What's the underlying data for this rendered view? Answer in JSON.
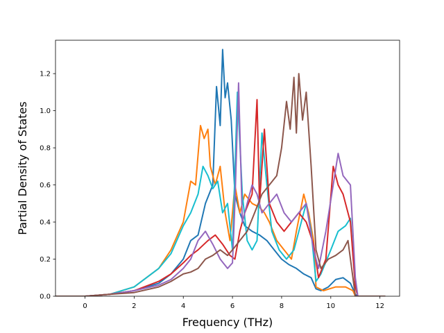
{
  "chart_data": {
    "type": "line",
    "title": "",
    "xlabel": "Frequency (THz)",
    "ylabel": "Partial Density of States",
    "xlim": [
      -1.2,
      12.8
    ],
    "ylim": [
      0.0,
      1.38
    ],
    "xticks": [
      0,
      2,
      4,
      6,
      8,
      10,
      12
    ],
    "yticks": [
      0.0,
      0.2,
      0.4,
      0.6,
      0.8,
      1.0,
      1.2
    ],
    "xtick_labels": [
      "0",
      "2",
      "4",
      "6",
      "8",
      "10",
      "12"
    ],
    "ytick_labels": [
      "0.0",
      "0.2",
      "0.4",
      "0.6",
      "0.8",
      "1.0",
      "1.2"
    ],
    "grid": false,
    "legend": "none",
    "series": [
      {
        "color": "#1f77b4",
        "points": [
          [
            -1.2,
            0
          ],
          [
            0,
            0
          ],
          [
            1,
            0.01
          ],
          [
            2,
            0.03
          ],
          [
            3,
            0.07
          ],
          [
            3.5,
            0.12
          ],
          [
            4,
            0.2
          ],
          [
            4.3,
            0.3
          ],
          [
            4.6,
            0.33
          ],
          [
            4.9,
            0.5
          ],
          [
            5.2,
            0.6
          ],
          [
            5.35,
            1.13
          ],
          [
            5.5,
            0.92
          ],
          [
            5.6,
            1.33
          ],
          [
            5.7,
            1.07
          ],
          [
            5.8,
            1.15
          ],
          [
            5.95,
            0.95
          ],
          [
            6.1,
            0.55
          ],
          [
            6.3,
            0.45
          ],
          [
            6.5,
            0.38
          ],
          [
            6.8,
            0.35
          ],
          [
            7.1,
            0.33
          ],
          [
            7.4,
            0.3
          ],
          [
            7.7,
            0.25
          ],
          [
            8,
            0.2
          ],
          [
            8.3,
            0.17
          ],
          [
            8.6,
            0.15
          ],
          [
            8.9,
            0.12
          ],
          [
            9.2,
            0.1
          ],
          [
            9.4,
            0.04
          ],
          [
            9.6,
            0.03
          ],
          [
            9.9,
            0.05
          ],
          [
            10.2,
            0.09
          ],
          [
            10.5,
            0.1
          ],
          [
            10.8,
            0.07
          ],
          [
            11,
            0.01
          ],
          [
            11.1,
            0
          ],
          [
            12.2,
            0
          ]
        ]
      },
      {
        "color": "#ff7f0e",
        "points": [
          [
            -1.2,
            0
          ],
          [
            0,
            0
          ],
          [
            1,
            0.01
          ],
          [
            2,
            0.05
          ],
          [
            3,
            0.15
          ],
          [
            3.5,
            0.25
          ],
          [
            4,
            0.4
          ],
          [
            4.3,
            0.62
          ],
          [
            4.5,
            0.6
          ],
          [
            4.7,
            0.92
          ],
          [
            4.85,
            0.85
          ],
          [
            5,
            0.9
          ],
          [
            5.1,
            0.7
          ],
          [
            5.3,
            0.6
          ],
          [
            5.5,
            0.7
          ],
          [
            5.7,
            0.45
          ],
          [
            5.9,
            0.3
          ],
          [
            6.1,
            0.6
          ],
          [
            6.3,
            0.45
          ],
          [
            6.5,
            0.55
          ],
          [
            6.8,
            0.5
          ],
          [
            7.1,
            0.48
          ],
          [
            7.3,
            0.45
          ],
          [
            7.5,
            0.4
          ],
          [
            7.8,
            0.3
          ],
          [
            8.1,
            0.25
          ],
          [
            8.4,
            0.2
          ],
          [
            8.6,
            0.35
          ],
          [
            8.9,
            0.55
          ],
          [
            9.1,
            0.45
          ],
          [
            9.3,
            0.3
          ],
          [
            9.4,
            0.05
          ],
          [
            9.7,
            0.03
          ],
          [
            10.2,
            0.05
          ],
          [
            10.6,
            0.05
          ],
          [
            10.9,
            0.03
          ],
          [
            11,
            0
          ],
          [
            12.2,
            0
          ]
        ]
      },
      {
        "color": "#17becf",
        "points": [
          [
            -1.2,
            0
          ],
          [
            0,
            0
          ],
          [
            1,
            0.01
          ],
          [
            2,
            0.05
          ],
          [
            3,
            0.15
          ],
          [
            3.5,
            0.23
          ],
          [
            4,
            0.38
          ],
          [
            4.3,
            0.45
          ],
          [
            4.6,
            0.55
          ],
          [
            4.8,
            0.7
          ],
          [
            5,
            0.65
          ],
          [
            5.2,
            0.58
          ],
          [
            5.4,
            0.62
          ],
          [
            5.6,
            0.45
          ],
          [
            5.8,
            0.5
          ],
          [
            6,
            0.25
          ],
          [
            6.2,
            1.1
          ],
          [
            6.4,
            0.55
          ],
          [
            6.6,
            0.3
          ],
          [
            6.8,
            0.25
          ],
          [
            7,
            0.3
          ],
          [
            7.2,
            0.88
          ],
          [
            7.4,
            0.6
          ],
          [
            7.6,
            0.35
          ],
          [
            7.9,
            0.25
          ],
          [
            8.2,
            0.2
          ],
          [
            8.5,
            0.25
          ],
          [
            8.8,
            0.4
          ],
          [
            9.0,
            0.5
          ],
          [
            9.2,
            0.35
          ],
          [
            9.4,
            0.08
          ],
          [
            9.6,
            0.12
          ],
          [
            10,
            0.25
          ],
          [
            10.3,
            0.35
          ],
          [
            10.6,
            0.38
          ],
          [
            10.8,
            0.42
          ],
          [
            11,
            0.05
          ],
          [
            11.1,
            0
          ],
          [
            12.2,
            0
          ]
        ]
      },
      {
        "color": "#d62728",
        "points": [
          [
            -1.2,
            0
          ],
          [
            0,
            0
          ],
          [
            1,
            0.01
          ],
          [
            2,
            0.03
          ],
          [
            3,
            0.08
          ],
          [
            3.5,
            0.12
          ],
          [
            4,
            0.18
          ],
          [
            4.3,
            0.22
          ],
          [
            4.6,
            0.25
          ],
          [
            5,
            0.3
          ],
          [
            5.3,
            0.33
          ],
          [
            5.6,
            0.28
          ],
          [
            5.9,
            0.22
          ],
          [
            6.1,
            0.2
          ],
          [
            6.3,
            0.35
          ],
          [
            6.5,
            0.45
          ],
          [
            6.8,
            0.55
          ],
          [
            7,
            1.06
          ],
          [
            7.1,
            0.5
          ],
          [
            7.3,
            0.9
          ],
          [
            7.5,
            0.5
          ],
          [
            7.8,
            0.4
          ],
          [
            8.1,
            0.35
          ],
          [
            8.4,
            0.4
          ],
          [
            8.7,
            0.45
          ],
          [
            9.0,
            0.4
          ],
          [
            9.3,
            0.28
          ],
          [
            9.5,
            0.1
          ],
          [
            9.8,
            0.2
          ],
          [
            10.1,
            0.7
          ],
          [
            10.3,
            0.6
          ],
          [
            10.5,
            0.55
          ],
          [
            10.8,
            0.4
          ],
          [
            11,
            0.05
          ],
          [
            11.1,
            0
          ],
          [
            12.2,
            0
          ]
        ]
      },
      {
        "color": "#9467bd",
        "points": [
          [
            -1.2,
            0
          ],
          [
            0,
            0
          ],
          [
            1,
            0.01
          ],
          [
            2,
            0.03
          ],
          [
            3,
            0.06
          ],
          [
            3.5,
            0.09
          ],
          [
            4,
            0.15
          ],
          [
            4.3,
            0.2
          ],
          [
            4.6,
            0.3
          ],
          [
            4.9,
            0.35
          ],
          [
            5.2,
            0.28
          ],
          [
            5.5,
            0.2
          ],
          [
            5.8,
            0.15
          ],
          [
            6,
            0.18
          ],
          [
            6.1,
            0.5
          ],
          [
            6.25,
            1.15
          ],
          [
            6.4,
            0.4
          ],
          [
            6.6,
            0.5
          ],
          [
            6.8,
            0.6
          ],
          [
            7,
            0.55
          ],
          [
            7.2,
            0.45
          ],
          [
            7.5,
            0.5
          ],
          [
            7.8,
            0.55
          ],
          [
            8.1,
            0.45
          ],
          [
            8.4,
            0.4
          ],
          [
            8.7,
            0.45
          ],
          [
            9,
            0.5
          ],
          [
            9.3,
            0.25
          ],
          [
            9.5,
            0.15
          ],
          [
            9.8,
            0.35
          ],
          [
            10.1,
            0.6
          ],
          [
            10.3,
            0.77
          ],
          [
            10.5,
            0.65
          ],
          [
            10.8,
            0.6
          ],
          [
            11,
            0.1
          ],
          [
            11.1,
            0
          ],
          [
            12.2,
            0
          ]
        ]
      },
      {
        "color": "#8c564b",
        "points": [
          [
            -1.2,
            0
          ],
          [
            0,
            0
          ],
          [
            1,
            0.01
          ],
          [
            2,
            0.02
          ],
          [
            3,
            0.05
          ],
          [
            3.5,
            0.08
          ],
          [
            4,
            0.12
          ],
          [
            4.3,
            0.13
          ],
          [
            4.6,
            0.15
          ],
          [
            4.9,
            0.2
          ],
          [
            5.2,
            0.22
          ],
          [
            5.5,
            0.25
          ],
          [
            5.8,
            0.22
          ],
          [
            6.0,
            0.25
          ],
          [
            6.3,
            0.3
          ],
          [
            6.6,
            0.35
          ],
          [
            6.9,
            0.45
          ],
          [
            7.2,
            0.55
          ],
          [
            7.5,
            0.6
          ],
          [
            7.8,
            0.65
          ],
          [
            8.0,
            0.8
          ],
          [
            8.2,
            1.05
          ],
          [
            8.35,
            0.9
          ],
          [
            8.5,
            1.18
          ],
          [
            8.6,
            0.88
          ],
          [
            8.7,
            1.2
          ],
          [
            8.85,
            0.95
          ],
          [
            9.0,
            1.1
          ],
          [
            9.2,
            0.7
          ],
          [
            9.4,
            0.25
          ],
          [
            9.6,
            0.15
          ],
          [
            9.9,
            0.2
          ],
          [
            10.2,
            0.22
          ],
          [
            10.5,
            0.25
          ],
          [
            10.7,
            0.3
          ],
          [
            10.9,
            0.1
          ],
          [
            11.0,
            0
          ],
          [
            12.2,
            0
          ]
        ]
      }
    ]
  }
}
